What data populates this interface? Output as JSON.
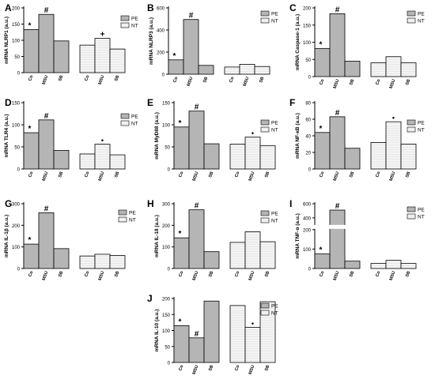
{
  "colors": {
    "pe_fill": "#b5b5b5",
    "nt_fill": "#e8e8e8",
    "axis": "#000000"
  },
  "chart_data": [
    {
      "panel": "A",
      "type": "bar",
      "ylabel": "mRNA NLRP1 (a.u.)",
      "ylim": [
        0,
        200
      ],
      "yticks": [
        0,
        50,
        100,
        150,
        200
      ],
      "categories": [
        "Co",
        "MSU",
        "SB"
      ],
      "series": [
        {
          "name": "PE",
          "values": [
            133,
            180,
            98
          ]
        },
        {
          "name": "NT",
          "values": [
            85,
            106,
            73
          ]
        }
      ],
      "annotations": [
        {
          "series": "PE",
          "category": "Co",
          "symbol": "*"
        },
        {
          "series": "PE",
          "category": "MSU",
          "symbol": "#"
        },
        {
          "series": "NT",
          "category": "MSU",
          "symbol": "+"
        }
      ],
      "legend": [
        "PE",
        "NT"
      ]
    },
    {
      "panel": "B",
      "type": "bar",
      "ylabel": "mRNA NLRP3 (a.u.)",
      "ylim": [
        0,
        600
      ],
      "yticks": [
        0,
        200,
        400,
        600
      ],
      "categories": [
        "Co",
        "MSU",
        "SB"
      ],
      "series": [
        {
          "name": "PE",
          "values": [
            130,
            495,
            80
          ]
        },
        {
          "name": "NT",
          "values": [
            65,
            90,
            70
          ]
        }
      ],
      "annotations": [
        {
          "series": "PE",
          "category": "Co",
          "symbol": "*"
        },
        {
          "series": "PE",
          "category": "MSU",
          "symbol": "#"
        }
      ],
      "legend": [
        "PE",
        "NT"
      ]
    },
    {
      "panel": "C",
      "type": "bar",
      "ylabel": "mRNA Caspase-1 (a.u.)",
      "ylim": [
        0,
        200
      ],
      "yticks": [
        0,
        50,
        100,
        150,
        200
      ],
      "categories": [
        "Co",
        "MSU",
        "SB"
      ],
      "series": [
        {
          "name": "PE",
          "values": [
            82,
            183,
            45
          ]
        },
        {
          "name": "NT",
          "values": [
            40,
            58,
            40
          ]
        }
      ],
      "annotations": [
        {
          "series": "PE",
          "category": "Co",
          "symbol": "*"
        },
        {
          "series": "PE",
          "category": "MSU",
          "symbol": "#"
        }
      ],
      "legend": [
        "PE",
        "NT"
      ]
    },
    {
      "panel": "D",
      "type": "bar",
      "ylabel": "mRNA TLR4 (a.u.)",
      "ylim": [
        0,
        150
      ],
      "yticks": [
        0,
        50,
        100,
        150
      ],
      "categories": [
        "Co",
        "MSU",
        "SB"
      ],
      "series": [
        {
          "name": "PE",
          "values": [
            82,
            111,
            42
          ]
        },
        {
          "name": "NT",
          "values": [
            34,
            56,
            32
          ]
        }
      ],
      "annotations": [
        {
          "series": "PE",
          "category": "Co",
          "symbol": "*"
        },
        {
          "series": "PE",
          "category": "MSU",
          "symbol": "#"
        },
        {
          "series": "NT",
          "category": "MSU",
          "symbol": "•"
        }
      ],
      "legend": [
        "PE",
        "NT"
      ]
    },
    {
      "panel": "E",
      "type": "bar",
      "ylabel": "mRNA MyD88 (a.u.)",
      "ylim": [
        0,
        150
      ],
      "yticks": [
        0,
        50,
        100,
        150
      ],
      "categories": [
        "Co",
        "MSU",
        "SB"
      ],
      "series": [
        {
          "name": "PE",
          "values": [
            95,
            131,
            57
          ]
        },
        {
          "name": "NT",
          "values": [
            56,
            72,
            53
          ]
        }
      ],
      "annotations": [
        {
          "series": "PE",
          "category": "Co",
          "symbol": "*"
        },
        {
          "series": "PE",
          "category": "MSU",
          "symbol": "#"
        },
        {
          "series": "NT",
          "category": "MSU",
          "symbol": "•"
        }
      ],
      "legend": [
        "PE",
        "NT"
      ]
    },
    {
      "panel": "F",
      "type": "bar",
      "ylabel": "mRNA NF-κB (a.u.)",
      "ylim": [
        0,
        80
      ],
      "yticks": [
        0,
        20,
        40,
        60,
        80
      ],
      "categories": [
        "Co",
        "MSU",
        "SB"
      ],
      "series": [
        {
          "name": "PE",
          "values": [
            44,
            63,
            25
          ]
        },
        {
          "name": "NT",
          "values": [
            32,
            57,
            30
          ]
        }
      ],
      "annotations": [
        {
          "series": "PE",
          "category": "Co",
          "symbol": "*"
        },
        {
          "series": "PE",
          "category": "MSU",
          "symbol": "#"
        },
        {
          "series": "NT",
          "category": "MSU",
          "symbol": "•"
        }
      ],
      "legend": [
        "PE",
        "NT"
      ]
    },
    {
      "panel": "G",
      "type": "bar",
      "ylabel": "mRNA IL-1β (a.u.)",
      "ylim": [
        0,
        300
      ],
      "yticks": [
        0,
        100,
        200,
        300
      ],
      "categories": [
        "Co",
        "MSU",
        "SB"
      ],
      "series": [
        {
          "name": "PE",
          "values": [
            113,
            258,
            92
          ]
        },
        {
          "name": "NT",
          "values": [
            58,
            66,
            60
          ]
        }
      ],
      "annotations": [
        {
          "series": "PE",
          "category": "Co",
          "symbol": "*"
        },
        {
          "series": "PE",
          "category": "MSU",
          "symbol": "#"
        }
      ],
      "legend": [
        "PE",
        "NT"
      ]
    },
    {
      "panel": "H",
      "type": "bar",
      "ylabel": "mRNA IL-18 (a.u.)",
      "ylim": [
        0,
        300
      ],
      "yticks": [
        0,
        100,
        200,
        300
      ],
      "categories": [
        "Co",
        "MSU",
        "SB"
      ],
      "series": [
        {
          "name": "PE",
          "values": [
            142,
            272,
            78
          ]
        },
        {
          "name": "NT",
          "values": [
            121,
            170,
            124
          ]
        }
      ],
      "annotations": [
        {
          "series": "PE",
          "category": "Co",
          "symbol": "*"
        },
        {
          "series": "PE",
          "category": "MSU",
          "symbol": "#"
        }
      ],
      "legend": [
        "PE",
        "NT"
      ]
    },
    {
      "panel": "I",
      "type": "bar",
      "ylabel": "mRNA TNF-α (a.u.)",
      "ylim": [
        0,
        600
      ],
      "yticks": [
        0,
        100,
        200,
        400,
        600
      ],
      "axis_break": [
        200,
        300
      ],
      "categories": [
        "Co",
        "MSU",
        "SB"
      ],
      "series": [
        {
          "name": "PE",
          "values": [
            75,
            510,
            38
          ]
        },
        {
          "name": "NT",
          "values": [
            26,
            42,
            26
          ]
        }
      ],
      "annotations": [
        {
          "series": "PE",
          "category": "Co",
          "symbol": "*"
        },
        {
          "series": "PE",
          "category": "MSU",
          "symbol": "#"
        }
      ],
      "legend": [
        "PE",
        "NT"
      ]
    },
    {
      "panel": "J",
      "type": "bar",
      "ylabel": "mRNA IL-10 (a.u.)",
      "ylim": [
        0,
        200
      ],
      "yticks": [
        0,
        50,
        100,
        150,
        200
      ],
      "categories": [
        "Co",
        "MSU",
        "SB"
      ],
      "series": [
        {
          "name": "PE",
          "values": [
            115,
            77,
            192
          ]
        },
        {
          "name": "NT",
          "values": [
            178,
            110,
            190
          ]
        }
      ],
      "annotations": [
        {
          "series": "PE",
          "category": "Co",
          "symbol": "*"
        },
        {
          "series": "PE",
          "category": "MSU",
          "symbol": "#"
        },
        {
          "series": "NT",
          "category": "MSU",
          "symbol": "•"
        }
      ],
      "legend": [
        "PE",
        "NT"
      ]
    }
  ]
}
